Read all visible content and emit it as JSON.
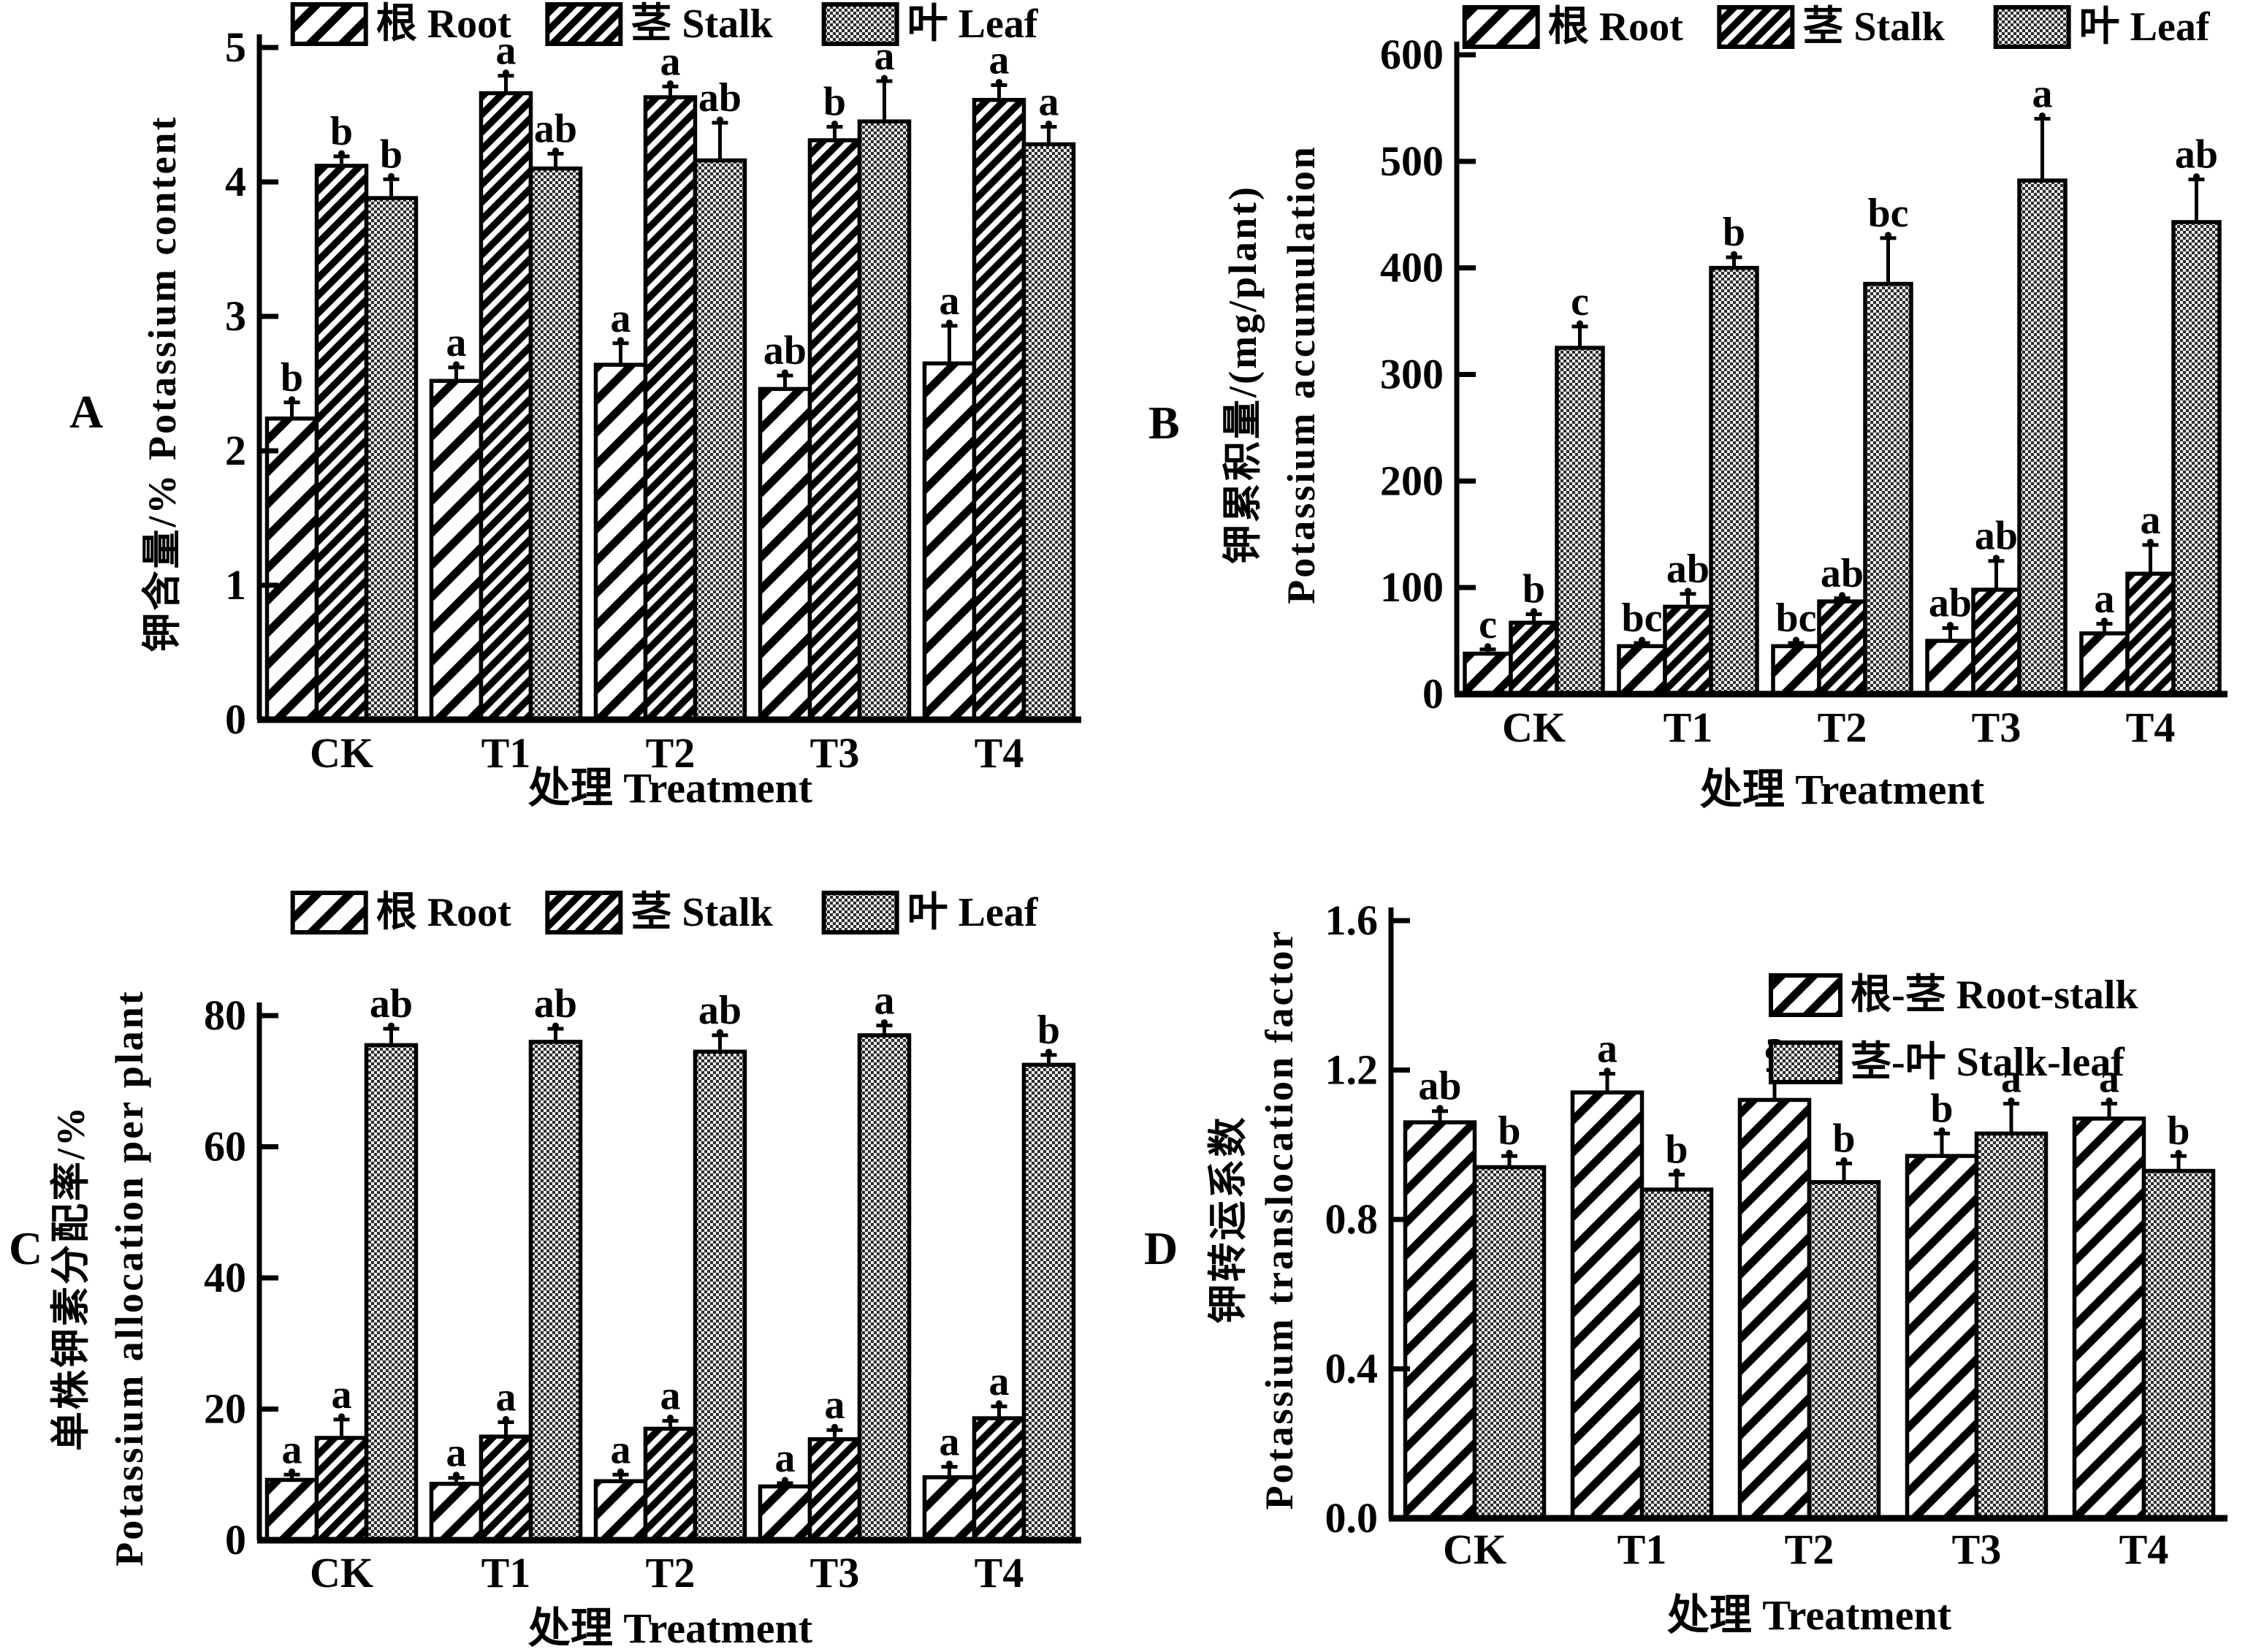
{
  "figure_bg": "#ffffff",
  "colors": {
    "ink": "#000000",
    "leaf_fill_dark": "#2e2e2e",
    "leaf_fill_light": "#ededed",
    "bar_bg": "#ffffff"
  },
  "shared": {
    "xlabel": "处理 Treatment",
    "categories": [
      "CK",
      "T1",
      "T2",
      "T3",
      "T4"
    ]
  },
  "chart_data": [
    {
      "type": "bar",
      "panel": "A",
      "ylabel_lines": [
        "钾含量/% Potassium content"
      ],
      "xlabel": "处理 Treatment",
      "categories": [
        "CK",
        "T1",
        "T2",
        "T3",
        "T4"
      ],
      "ylim": [
        0,
        5
      ],
      "yticks": [
        0,
        1,
        2,
        3,
        4,
        5
      ],
      "ytick_decimals": 0,
      "grid": false,
      "legend_position": "top",
      "legend": [
        {
          "label": "根 Root",
          "pattern": "hatchLight"
        },
        {
          "label": "茎 Stalk",
          "pattern": "hatchDense"
        },
        {
          "label": "叶 Leaf",
          "pattern": "dots"
        }
      ],
      "series": [
        {
          "name": "根 Root",
          "pattern": "hatchLight",
          "values": [
            2.24,
            2.52,
            2.64,
            2.46,
            2.65
          ],
          "errors": [
            0.12,
            0.1,
            0.16,
            0.1,
            0.28
          ],
          "letters": [
            "b",
            "a",
            "a",
            "ab",
            "a"
          ]
        },
        {
          "name": "茎 Stalk",
          "pattern": "hatchDense",
          "values": [
            4.12,
            4.66,
            4.63,
            4.31,
            4.61
          ],
          "errors": [
            0.07,
            0.13,
            0.08,
            0.1,
            0.11
          ],
          "letters": [
            "b",
            "a",
            "a",
            "b",
            "a"
          ]
        },
        {
          "name": "叶 Leaf",
          "pattern": "dots",
          "values": [
            3.88,
            4.1,
            4.16,
            4.45,
            4.28
          ],
          "errors": [
            0.14,
            0.11,
            0.28,
            0.3,
            0.13
          ],
          "letters": [
            "b",
            "ab",
            "ab",
            "a",
            "a"
          ]
        }
      ]
    },
    {
      "type": "bar",
      "panel": "B",
      "ylabel_lines": [
        "钾累积量/(mg/plant)",
        "Potassium accumulation"
      ],
      "xlabel": "处理 Treatment",
      "categories": [
        "CK",
        "T1",
        "T2",
        "T3",
        "T4"
      ],
      "ylim": [
        0,
        600
      ],
      "yticks": [
        0,
        100,
        200,
        300,
        400,
        500,
        600
      ],
      "ytick_decimals": 0,
      "grid": false,
      "legend_position": "top",
      "legend": [
        {
          "label": "根 Root",
          "pattern": "hatchLight"
        },
        {
          "label": "茎 Stalk",
          "pattern": "hatchDense"
        },
        {
          "label": "叶 Leaf",
          "pattern": "dots"
        }
      ],
      "series": [
        {
          "name": "根 Root",
          "pattern": "hatchLight",
          "values": [
            38,
            45,
            45,
            50,
            57
          ],
          "errors": [
            4,
            3,
            3,
            12,
            9
          ],
          "letters": [
            "c",
            "bc",
            "bc",
            "ab",
            "a"
          ]
        },
        {
          "name": "茎 Stalk",
          "pattern": "hatchDense",
          "values": [
            67,
            82,
            87,
            98,
            113
          ],
          "errors": [
            8,
            12,
            3,
            27,
            27
          ],
          "letters": [
            "b",
            "ab",
            "ab",
            "ab",
            "a"
          ]
        },
        {
          "name": "叶 Leaf",
          "pattern": "dots",
          "values": [
            325,
            400,
            385,
            482,
            443
          ],
          "errors": [
            20,
            10,
            43,
            58,
            40
          ],
          "letters": [
            "c",
            "b",
            "bc",
            "a",
            "ab"
          ]
        }
      ]
    },
    {
      "type": "bar",
      "panel": "C",
      "ylabel_lines": [
        "单株钾素分配率/%",
        "Potassium allocation per plant"
      ],
      "xlabel": "处理 Treatment",
      "categories": [
        "CK",
        "T1",
        "T2",
        "T3",
        "T4"
      ],
      "ylim": [
        0,
        80
      ],
      "yticks": [
        0,
        20,
        40,
        60,
        80
      ],
      "ytick_decimals": 0,
      "grid": false,
      "legend_position": "top",
      "legend": [
        {
          "label": "根 Root",
          "pattern": "hatchLight"
        },
        {
          "label": "茎 Stalk",
          "pattern": "hatchDense"
        },
        {
          "label": "叶 Leaf",
          "pattern": "dots"
        }
      ],
      "series": [
        {
          "name": "根 Root",
          "pattern": "hatchLight",
          "values": [
            9.2,
            8.6,
            9.0,
            8.2,
            9.6
          ],
          "errors": [
            0.8,
            0.9,
            1.0,
            0.5,
            1.6
          ],
          "letters": [
            "a",
            "a",
            "a",
            "a",
            "a"
          ]
        },
        {
          "name": "茎 Stalk",
          "pattern": "hatchDense",
          "values": [
            15.6,
            15.8,
            17.0,
            15.4,
            18.6
          ],
          "errors": [
            2.8,
            2.2,
            1.2,
            1.4,
            1.8
          ],
          "letters": [
            "a",
            "a",
            "a",
            "a",
            "a"
          ]
        },
        {
          "name": "叶 Leaf",
          "pattern": "dots",
          "values": [
            75.5,
            76.0,
            74.5,
            77.0,
            72.5
          ],
          "errors": [
            2.5,
            2.0,
            2.5,
            1.5,
            1.5
          ],
          "letters": [
            "ab",
            "ab",
            "ab",
            "a",
            "b"
          ]
        }
      ]
    },
    {
      "type": "bar",
      "panel": "D",
      "ylabel_lines": [
        "钾转运系数",
        "Potassium translocation factor"
      ],
      "xlabel": "处理 Treatment",
      "categories": [
        "CK",
        "T1",
        "T2",
        "T3",
        "T4"
      ],
      "ylim": [
        0,
        1.6
      ],
      "yticks": [
        0.0,
        0.4,
        0.8,
        1.2,
        1.6
      ],
      "ytick_decimals": 1,
      "grid": false,
      "legend_position": "inside-right",
      "legend": [
        {
          "label": "根-茎 Root-stalk",
          "pattern": "hatchLight"
        },
        {
          "label": "茎-叶 Stalk-leaf",
          "pattern": "dots"
        }
      ],
      "series": [
        {
          "name": "根-茎 Root-stalk",
          "pattern": "hatchLight",
          "values": [
            1.06,
            1.14,
            1.12,
            0.97,
            1.07
          ],
          "errors": [
            0.03,
            0.05,
            0.08,
            0.06,
            0.04
          ],
          "letters": [
            "ab",
            "a",
            "a",
            "b",
            "a"
          ]
        },
        {
          "name": "茎-叶 Stalk-leaf",
          "pattern": "dots",
          "values": [
            0.94,
            0.88,
            0.9,
            1.03,
            0.93
          ],
          "errors": [
            0.03,
            0.04,
            0.05,
            0.08,
            0.04
          ],
          "letters": [
            "b",
            "b",
            "b",
            "a",
            "b"
          ]
        }
      ]
    }
  ]
}
